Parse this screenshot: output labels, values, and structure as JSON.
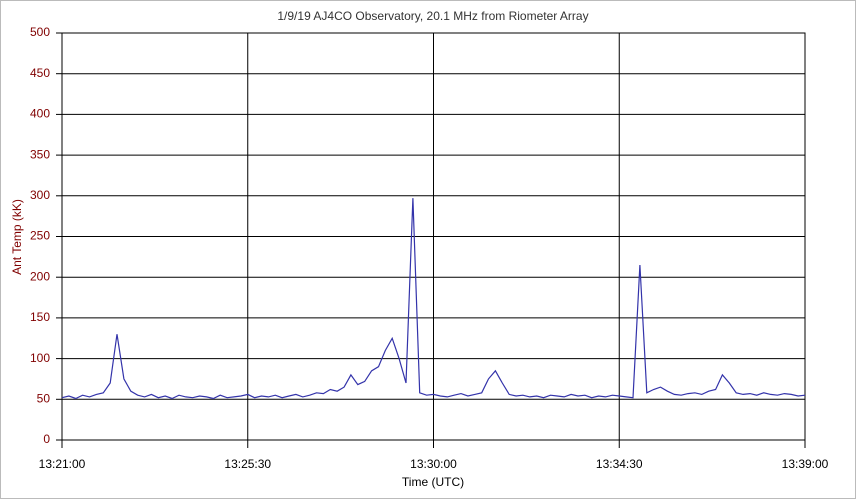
{
  "chart_data": {
    "type": "line",
    "title": "1/9/19 AJ4CO Observatory, 20.1 MHz from Riometer Array",
    "x_label": "Time (UTC)",
    "y_label": "Ant Temp (kK)",
    "start": "13:21:00",
    "step_seconds": 10,
    "xlim": [
      "13:21:00",
      "13:39:00"
    ],
    "xticks": [
      "13:21:00",
      "13:25:30",
      "13:30:00",
      "13:34:30",
      "13:39:00"
    ],
    "ylim": [
      0,
      500
    ],
    "yticks": [
      0,
      50,
      100,
      150,
      200,
      250,
      300,
      350,
      400,
      450,
      500
    ],
    "grid": true,
    "series": [
      {
        "name": "Ant Temp",
        "color": "#3333aa",
        "values": [
          52,
          54,
          51,
          55,
          53,
          56,
          58,
          70,
          130,
          75,
          60,
          55,
          53,
          56,
          52,
          54,
          51,
          55,
          53,
          52,
          54,
          53,
          51,
          55,
          52,
          53,
          54,
          56,
          52,
          54,
          53,
          55,
          52,
          54,
          56,
          53,
          55,
          58,
          57,
          62,
          60,
          65,
          80,
          68,
          72,
          85,
          90,
          110,
          125,
          100,
          70,
          297,
          58,
          55,
          56,
          54,
          53,
          55,
          57,
          54,
          56,
          58,
          75,
          85,
          70,
          56,
          54,
          55,
          53,
          54,
          52,
          55,
          54,
          53,
          56,
          54,
          55,
          52,
          54,
          53,
          55,
          54,
          53,
          52,
          215,
          58,
          62,
          65,
          60,
          56,
          55,
          57,
          58,
          56,
          60,
          62,
          80,
          70,
          58,
          56,
          57,
          55,
          58,
          56,
          55,
          57,
          56,
          54,
          55
        ]
      }
    ]
  }
}
